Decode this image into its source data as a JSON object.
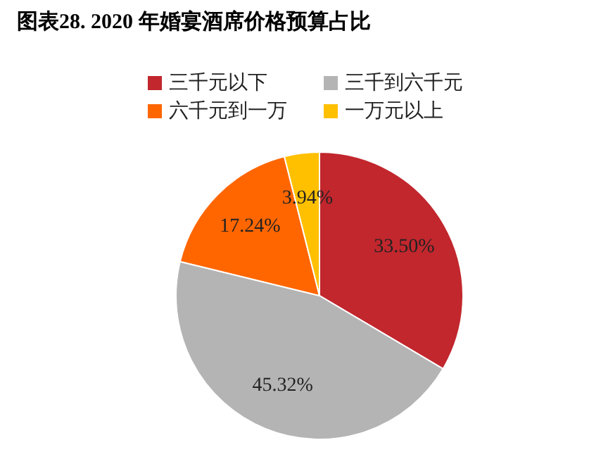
{
  "chart_data": {
    "type": "pie",
    "title": "图表28. 2020 年婚宴酒席价格预算占比",
    "categories": [
      "三千元以下",
      "三千到六千元",
      "六千元到一万",
      "一万元以上"
    ],
    "values": [
      33.5,
      45.32,
      17.24,
      3.94
    ],
    "value_labels": [
      "33.50%",
      "45.32%",
      "17.24%",
      "3.94%"
    ],
    "colors": [
      "#c1272d",
      "#b4b4b4",
      "#ff6600",
      "#ffc000"
    ],
    "legend": "top"
  }
}
